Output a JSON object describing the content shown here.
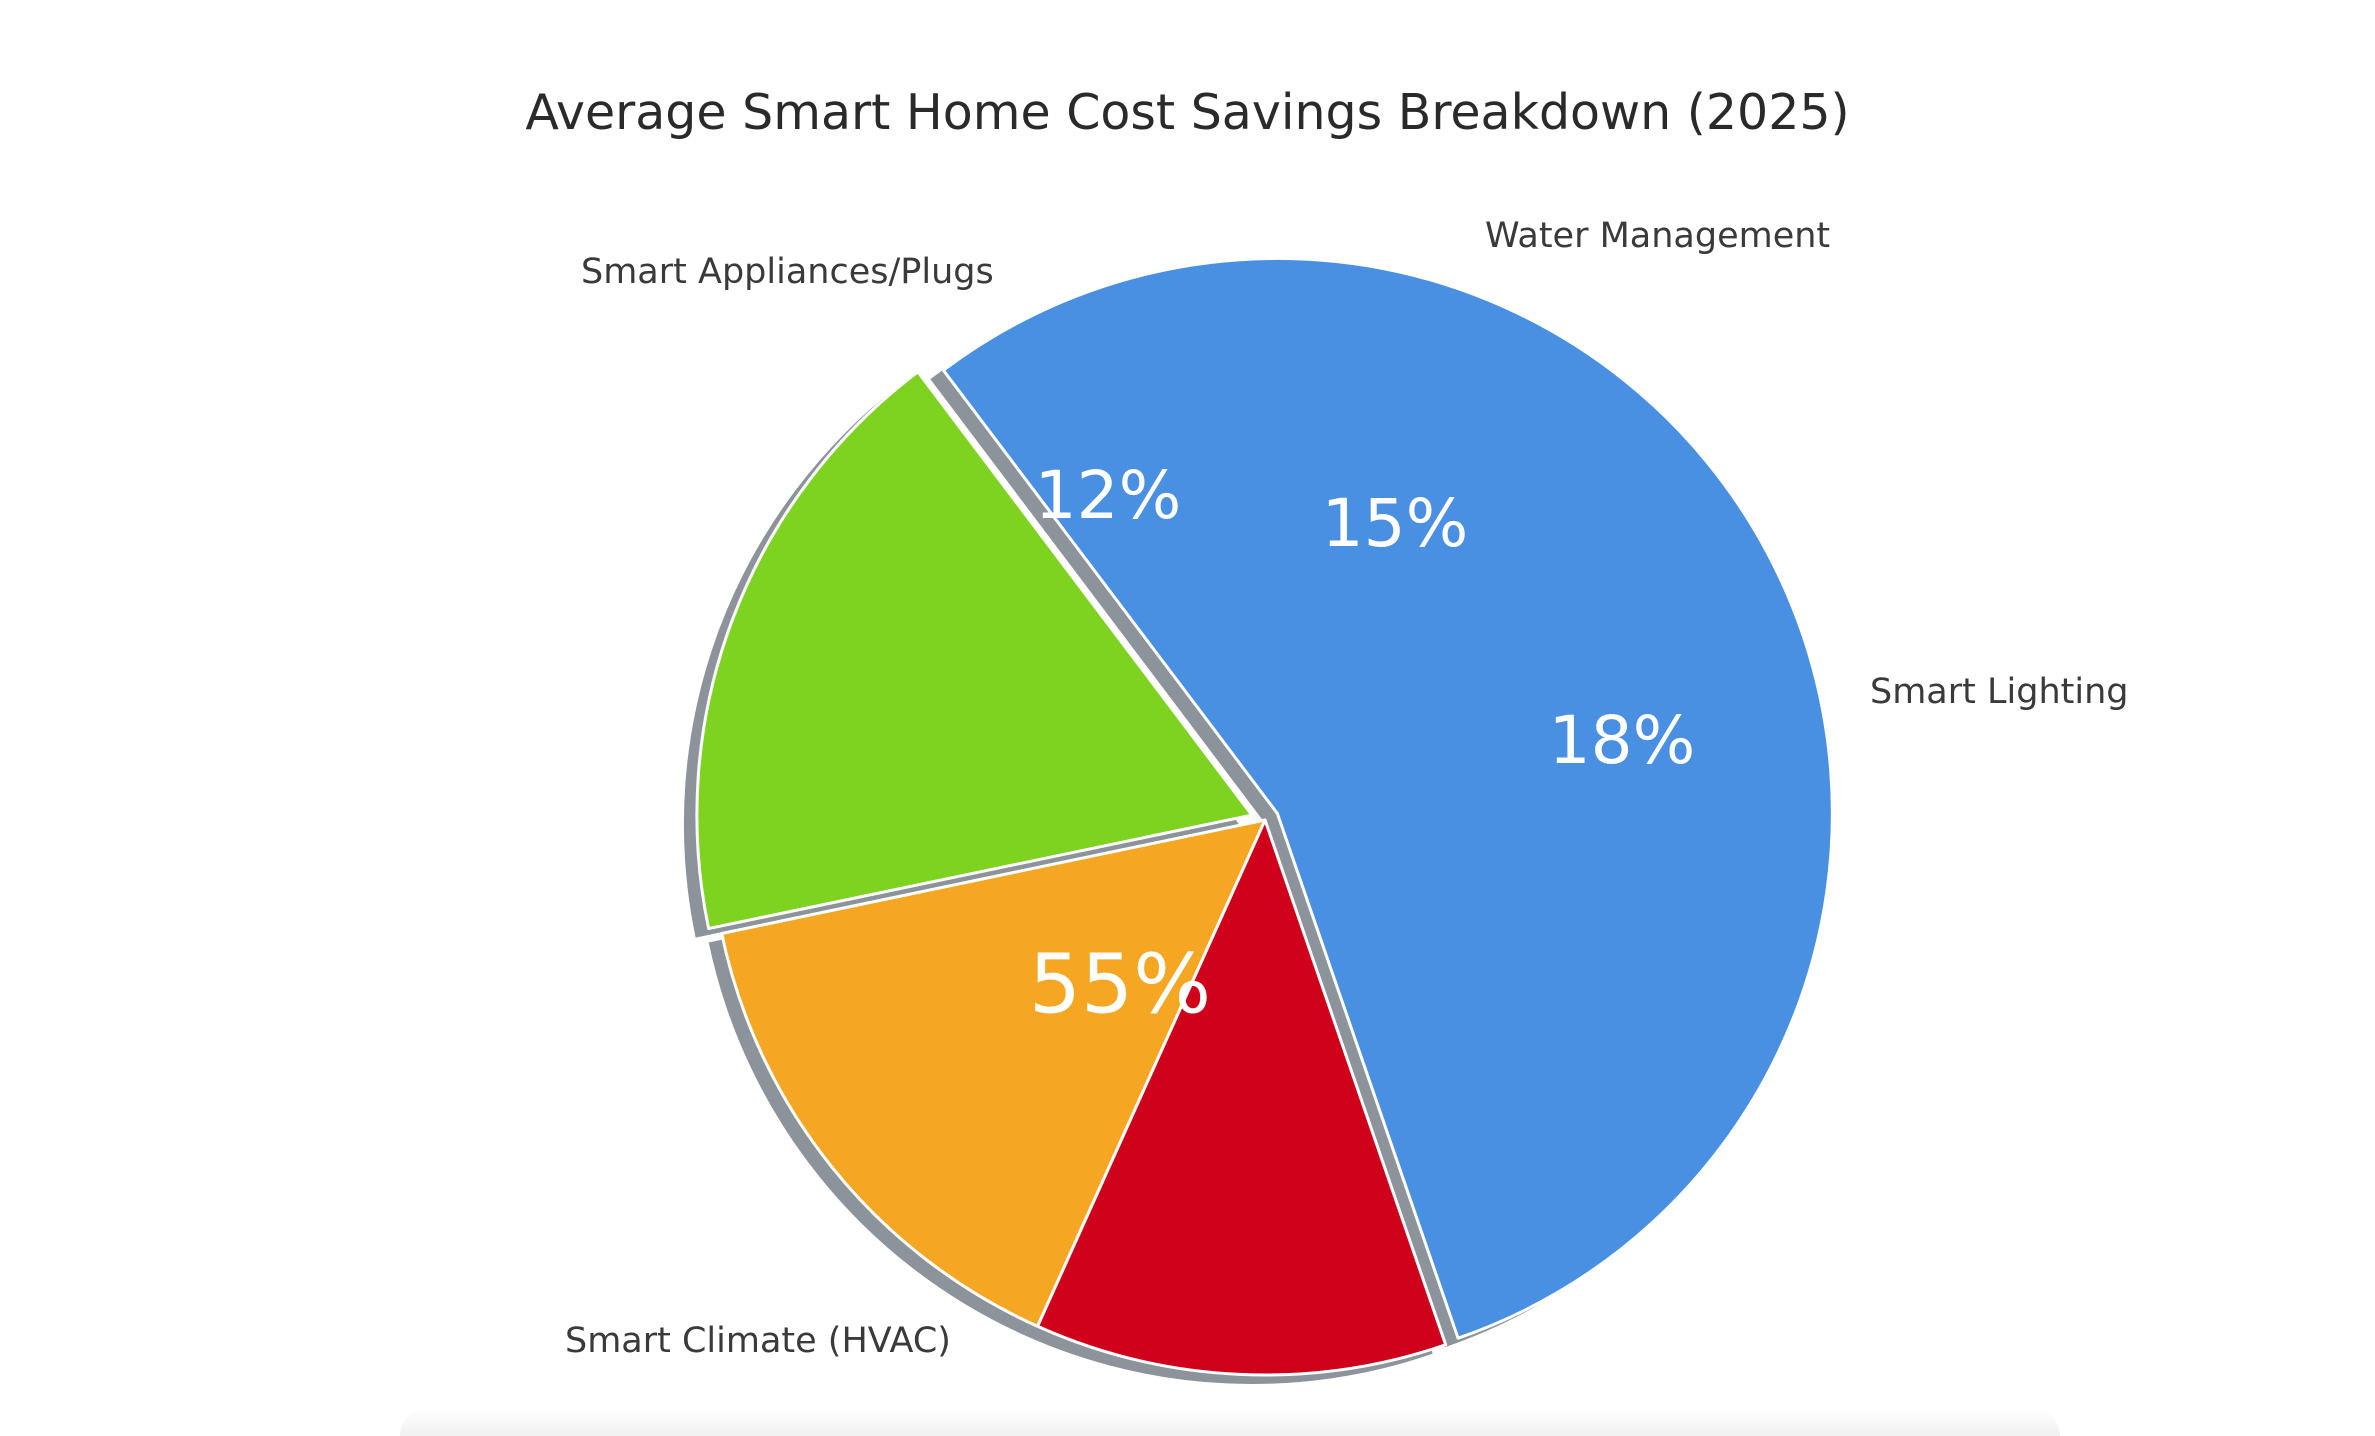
{
  "chart_data": {
    "type": "pie",
    "title": "Average Smart Home Cost Savings Breakdown (2025)",
    "slices": [
      {
        "label": "Smart Climate (HVAC)",
        "value": 55,
        "value_label": "55%",
        "color": "#4a90e2"
      },
      {
        "label": "Smart Appliances/Plugs",
        "value": 12,
        "value_label": "12%",
        "color": "#d0021b"
      },
      {
        "label": "Water Management",
        "value": 15,
        "value_label": "15%",
        "color": "#f5a623"
      },
      {
        "label": "Smart Lighting",
        "value": 18,
        "value_label": "18%",
        "color": "#7ed321"
      }
    ],
    "legend": "none",
    "label_placement": "outside slice names, inside percentages"
  }
}
